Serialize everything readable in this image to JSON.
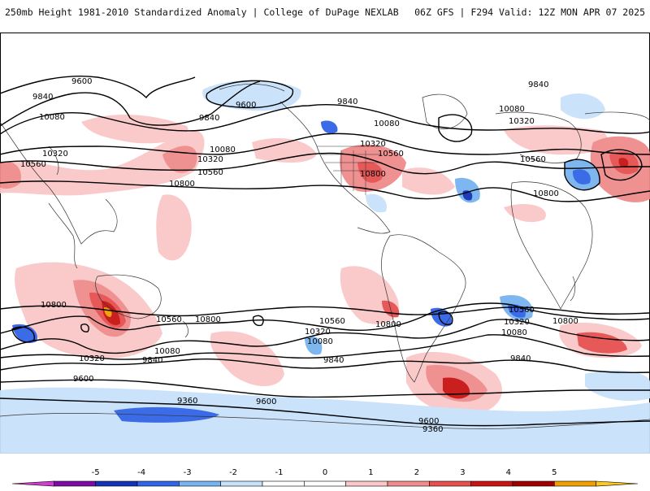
{
  "title": {
    "left": "250mb Height 1981-2010 Standardized Anomaly | College of DuPage NEXLAB",
    "right": "06Z GFS | F294 Valid: 12Z MON APR 07 2025"
  },
  "contour_labels": [
    "9600",
    "9840",
    "10080",
    "10320",
    "10560",
    "10800",
    "9360"
  ],
  "labels_on_map": [
    {
      "text": "9600",
      "id": "nh-9600-pac"
    },
    {
      "text": "9840",
      "id": "nh-9840-west"
    },
    {
      "text": "10080",
      "id": "nh-10080-west"
    },
    {
      "text": "10320",
      "id": "nh-10320-west"
    },
    {
      "text": "10560",
      "id": "nh-10560-west"
    },
    {
      "text": "9600",
      "id": "nh-9600-alaska"
    },
    {
      "text": "9840",
      "id": "nh-9840-alaska"
    },
    {
      "text": "10080",
      "id": "nh-10080-pac"
    },
    {
      "text": "10320",
      "id": "nh-10320-pac"
    },
    {
      "text": "10560",
      "id": "nh-10560-pac"
    },
    {
      "text": "10800",
      "id": "nh-10800-pac"
    },
    {
      "text": "9840",
      "id": "nh-9840-canada"
    },
    {
      "text": "10080",
      "id": "nh-10080-us"
    },
    {
      "text": "10320",
      "id": "nh-10320-us"
    },
    {
      "text": "10560",
      "id": "nh-10560-us"
    },
    {
      "text": "10800",
      "id": "nh-10800-us"
    },
    {
      "text": "9840",
      "id": "nh-9840-euro"
    },
    {
      "text": "10080",
      "id": "nh-10080-euro"
    },
    {
      "text": "10320",
      "id": "nh-10320-euro"
    },
    {
      "text": "10560",
      "id": "nh-10560-africa"
    },
    {
      "text": "10800",
      "id": "nh-10800-africa"
    },
    {
      "text": "10800",
      "id": "sh-10800-indian"
    },
    {
      "text": "10560",
      "id": "sh-10560-aus"
    },
    {
      "text": "10800",
      "id": "sh-10800-aus"
    },
    {
      "text": "10320",
      "id": "sh-10320-west"
    },
    {
      "text": "10080",
      "id": "sh-10080-nz"
    },
    {
      "text": "9840",
      "id": "sh-9840-nz"
    },
    {
      "text": "9600",
      "id": "sh-9600-west"
    },
    {
      "text": "9360",
      "id": "sh-9360-west"
    },
    {
      "text": "9600",
      "id": "sh-9600-mid"
    },
    {
      "text": "10560",
      "id": "sh-10560-pac"
    },
    {
      "text": "10320",
      "id": "sh-10320-pac"
    },
    {
      "text": "10080",
      "id": "sh-10080-pac"
    },
    {
      "text": "9840",
      "id": "sh-9840-pac"
    },
    {
      "text": "10800",
      "id": "sh-10800-sa"
    },
    {
      "text": "10560",
      "id": "sh-10560-atl"
    },
    {
      "text": "10320",
      "id": "sh-10320-atl"
    },
    {
      "text": "10080",
      "id": "sh-10080-atl"
    },
    {
      "text": "9840",
      "id": "sh-9840-atl"
    },
    {
      "text": "10800",
      "id": "sh-10800-atl"
    },
    {
      "text": "9600",
      "id": "sh-9600-atl"
    },
    {
      "text": "9360",
      "id": "sh-9360-atl"
    }
  ],
  "colorbar": {
    "ticks": [
      "-5",
      "-4",
      "-3",
      "-2",
      "-1",
      "0",
      "1",
      "2",
      "3",
      "4",
      "5"
    ],
    "colors": [
      "#d23cd2",
      "#7d0aa5",
      "#1432b4",
      "#3264e6",
      "#78b4f0",
      "#c8e1fa",
      "#ffffff",
      "#ffffff",
      "#fac8c8",
      "#f08c8c",
      "#e65050",
      "#c81414",
      "#a00000",
      "#f0a000",
      "#ffc81e"
    ]
  }
}
